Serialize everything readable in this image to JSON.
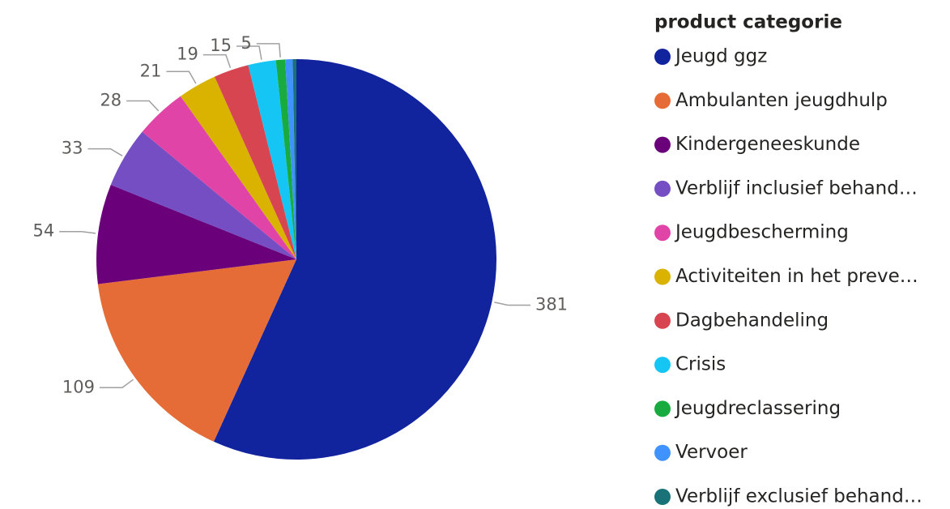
{
  "chart_data": {
    "type": "pie",
    "legend_title": "product categorie",
    "legend": "right",
    "categories": [
      "Jeugd ggz",
      "Ambulanten jeugdhulp",
      "Kindergeneeskunde",
      "Verblijf inclusief behand…",
      "Jeugdbescherming",
      "Activiteiten in het preve…",
      "Dagbehandeling",
      "Crisis",
      "Jeugdreclassering",
      "Vervoer",
      "Verblijf exclusief behand…"
    ],
    "values": [
      381,
      109,
      54,
      33,
      28,
      21,
      19,
      15,
      5,
      4,
      2
    ],
    "colors": [
      "#12239e",
      "#e66c37",
      "#6b007b",
      "#744ec2",
      "#e044a7",
      "#d9b300",
      "#d64550",
      "#15c6f4",
      "#1aab40",
      "#4092ff",
      "#197278"
    ]
  }
}
